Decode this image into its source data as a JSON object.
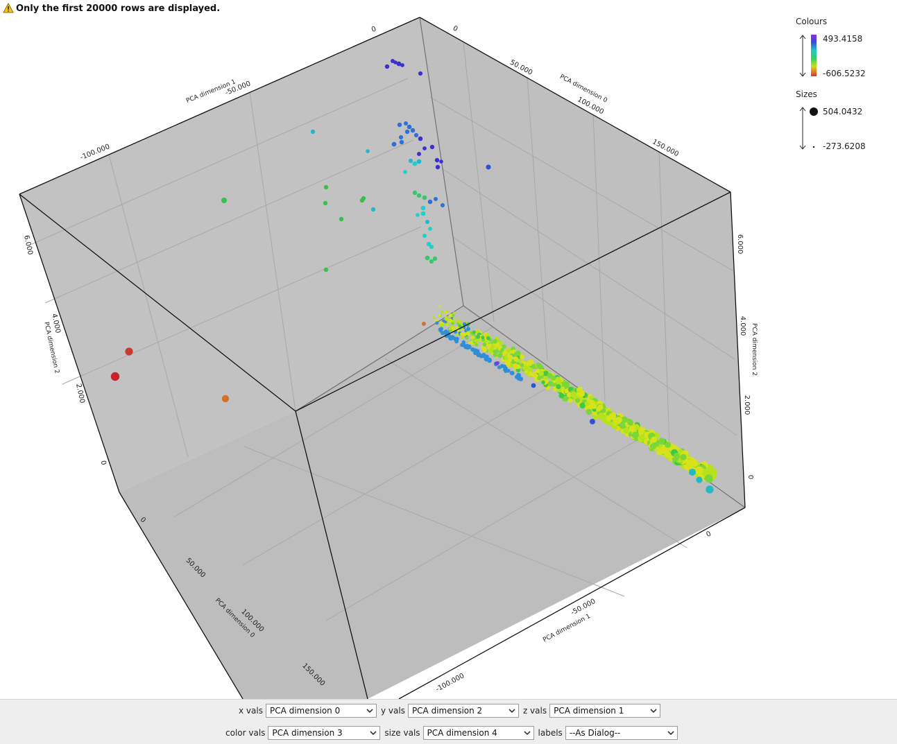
{
  "warning": {
    "text": "Only the first 20000 rows are displayed.",
    "icon": "warning-triangle-icon"
  },
  "chart_data": {
    "type": "scatter",
    "dimensions": 3,
    "axes": {
      "x": {
        "label": "PCA dimension 0",
        "ticks": [
          "0",
          "50.000",
          "100.000",
          "150.000"
        ]
      },
      "y": {
        "label": "PCA dimension 2",
        "ticks": [
          "0",
          "2.000",
          "4.000",
          "6.000"
        ]
      },
      "z": {
        "label": "PCA dimension 1",
        "ticks": [
          "0",
          "-50.000",
          "-100.000"
        ]
      }
    },
    "grid": true,
    "background": "#bdbdbd",
    "clusters": [
      {
        "name": "",
        "x_range": [
          0,
          40
        ],
        "y_range": [
          3900,
          6400
        ],
        "z_range": [
          0,
          -8
        ],
        "colors": [
          "#3b2fd0",
          "#2f6fd8",
          "#1fb6d6",
          "#1ed0c8",
          "#33c86a"
        ]
      },
      {
        "name": "",
        "x_range": [
          0,
          160
        ],
        "y_range": [
          3600,
          0
        ],
        "z_range": [
          0,
          -5
        ],
        "colors": [
          "#7bd63a",
          "#b5e21c",
          "#d8e21a",
          "#43c846",
          "#2f8fd6"
        ]
      }
    ],
    "outliers": [
      {
        "color": "#c73a2e"
      },
      {
        "color": "#c9232a"
      },
      {
        "color": "#d2722a"
      },
      {
        "color": "#38c04e"
      },
      {
        "color": "#22b8c8"
      },
      {
        "color": "#2f52d0"
      }
    ],
    "legend": {
      "colours": {
        "title": "Colours",
        "max": "493.4158",
        "min": "-606.5232",
        "gradient": [
          "#8a2be2",
          "#3a4bd8",
          "#1ec8c8",
          "#33d35a",
          "#c8e01a",
          "#e4762a",
          "#d8302a"
        ]
      },
      "sizes": {
        "title": "Sizes",
        "max": "504.0432",
        "min": "-273.6208"
      }
    }
  },
  "controls": {
    "row1": [
      {
        "label": "x vals",
        "value": "PCA dimension 0"
      },
      {
        "label": "y vals",
        "value": "PCA dimension 2"
      },
      {
        "label": "z vals",
        "value": "PCA dimension 1"
      }
    ],
    "row2": [
      {
        "label": "color vals",
        "value": "PCA dimension 3"
      },
      {
        "label": "size vals",
        "value": "PCA dimension 4"
      },
      {
        "label": "labels",
        "value": "--As Dialog--"
      }
    ]
  }
}
